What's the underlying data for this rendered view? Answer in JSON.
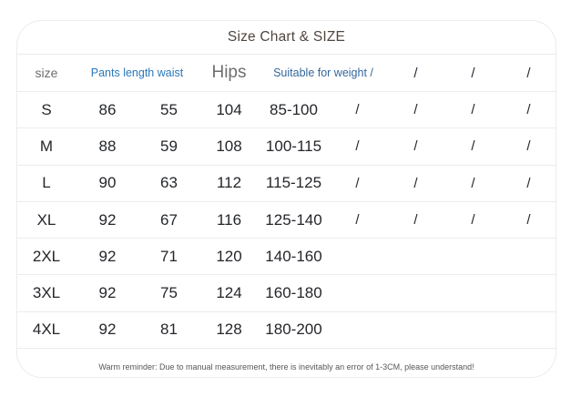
{
  "chart_data": {
    "type": "table",
    "title": "Size Chart & SIZE",
    "columns": [
      "size",
      "Pants length",
      "waist",
      "Hips",
      "Suitable for weight",
      "/",
      "/",
      "/",
      "/"
    ],
    "rows": [
      [
        "S",
        "86",
        "55",
        "104",
        "85-100",
        "/",
        "/",
        "/",
        "/"
      ],
      [
        "M",
        "88",
        "59",
        "108",
        "100-115",
        "/",
        "/",
        "/",
        "/"
      ],
      [
        "L",
        "90",
        "63",
        "112",
        "115-125",
        "/",
        "/",
        "/",
        "/"
      ],
      [
        "XL",
        "92",
        "67",
        "116",
        "125-140",
        "/",
        "/",
        "/",
        "/"
      ],
      [
        "2XL",
        "92",
        "71",
        "120",
        "140-160",
        "",
        "",
        "",
        ""
      ],
      [
        "3XL",
        "92",
        "75",
        "124",
        "160-180",
        "",
        "",
        "",
        ""
      ],
      [
        "4XL",
        "92",
        "81",
        "128",
        "180-200",
        "",
        "",
        "",
        ""
      ]
    ]
  },
  "header": {
    "size": "size",
    "pants_length_waist": "Pants length waist",
    "hips": "Hips",
    "suitable_weight": "Suitable for weight /",
    "slashes": [
      "/",
      "/",
      "/"
    ]
  },
  "footer_note": "Warm reminder: Due to manual measurement, there is inevitably an error of 1-3CM, please understand!",
  "colors": {
    "title": "#50463f",
    "header_gray": "#6e6e6e",
    "header_blue": "#2a77bb",
    "header_blue_dark": "#33689e",
    "data_text": "#24262a",
    "divider": "#ececec",
    "footer_text": "#575757",
    "card_background": "#ffffff"
  }
}
